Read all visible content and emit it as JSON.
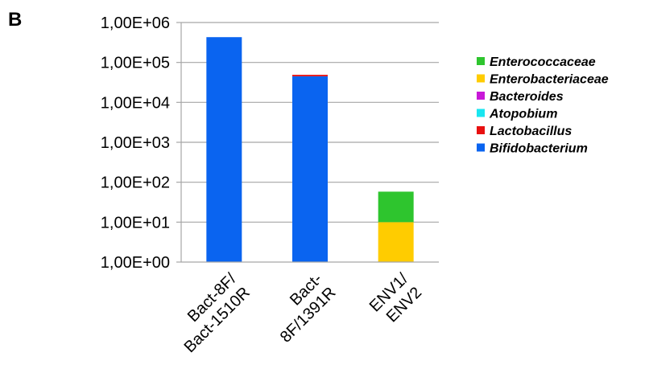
{
  "panel_label": "B",
  "chart_data": {
    "type": "bar",
    "stacked": true,
    "y_scale": "log",
    "ylim": [
      1,
      1000000
    ],
    "y_tick_labels": [
      "1,00E+00",
      "1,00E+01",
      "1,00E+02",
      "1,00E+03",
      "1,00E+04",
      "1,00E+05",
      "1,00E+06"
    ],
    "categories": [
      [
        "Bact-8F/",
        "Bact-1510R"
      ],
      [
        "Bact-",
        "8F/1391R"
      ],
      [
        "ENV1/",
        "ENV2"
      ]
    ],
    "series": [
      {
        "name": "Bifidobacterium",
        "color": "#0a64f0",
        "values": [
          430000,
          45000,
          0
        ]
      },
      {
        "name": "Lactobacillus",
        "color": "#e81010",
        "values": [
          0,
          4000,
          0
        ]
      },
      {
        "name": "Atopobium",
        "color": "#19e6f0",
        "values": [
          0,
          0,
          0
        ]
      },
      {
        "name": "Bacteroides",
        "color": "#c818d8",
        "values": [
          0,
          0,
          0
        ]
      },
      {
        "name": "Enterobacteriaceae",
        "color": "#ffcc00",
        "values": [
          0,
          0,
          10
        ]
      },
      {
        "name": "Enterococcaceae",
        "color": "#2ec52e",
        "values": [
          0,
          0,
          48
        ]
      }
    ],
    "legend_order": [
      "Enterococcaceae",
      "Enterobacteriaceae",
      "Bacteroides",
      "Atopobium",
      "Lactobacillus",
      "Bifidobacterium"
    ],
    "legend_position": "right",
    "grid": true,
    "grid_color": "#a6a6a6"
  }
}
